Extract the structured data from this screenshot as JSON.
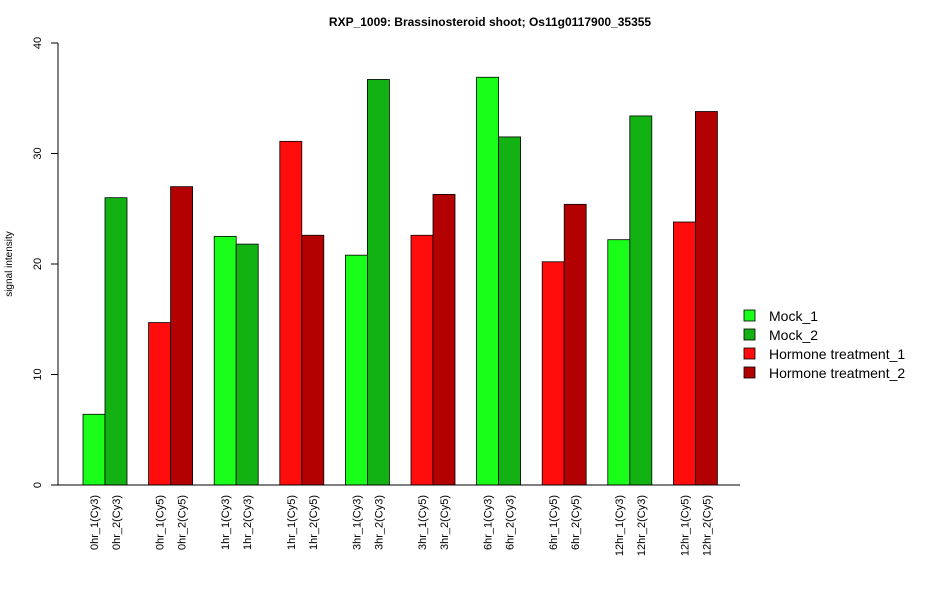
{
  "chart_data": {
    "type": "bar",
    "title": "RXP_1009: Brassinosteroid shoot; Os11g0117900_35355",
    "xlabel": "",
    "ylabel": "signal intensity",
    "ylim": [
      0,
      40
    ],
    "yticks": [
      0,
      10,
      20,
      30,
      40
    ],
    "grid": false,
    "legend_position": "right",
    "legend": [
      {
        "name": "Mock_1",
        "color": "#1aff1a"
      },
      {
        "name": "Mock_2",
        "color": "#12b212"
      },
      {
        "name": "Hormone treatment_1",
        "color": "#ff0d0d"
      },
      {
        "name": "Hormone treatment_2",
        "color": "#b30000"
      }
    ],
    "groups": [
      {
        "bars": [
          {
            "label": "0hr_1(Cy3)",
            "value": 6.4,
            "series": "Mock_1"
          },
          {
            "label": "0hr_2(Cy3)",
            "value": 26.0,
            "series": "Mock_2"
          }
        ]
      },
      {
        "bars": [
          {
            "label": "0hr_1(Cy5)",
            "value": 14.7,
            "series": "Hormone treatment_1"
          },
          {
            "label": "0hr_2(Cy5)",
            "value": 27.0,
            "series": "Hormone treatment_2"
          }
        ]
      },
      {
        "bars": [
          {
            "label": "1hr_1(Cy3)",
            "value": 22.5,
            "series": "Mock_1"
          },
          {
            "label": "1hr_2(Cy3)",
            "value": 21.8,
            "series": "Mock_2"
          }
        ]
      },
      {
        "bars": [
          {
            "label": "1hr_1(Cy5)",
            "value": 31.1,
            "series": "Hormone treatment_1"
          },
          {
            "label": "1hr_2(Cy5)",
            "value": 22.6,
            "series": "Hormone treatment_2"
          }
        ]
      },
      {
        "bars": [
          {
            "label": "3hr_1(Cy3)",
            "value": 20.8,
            "series": "Mock_1"
          },
          {
            "label": "3hr_2(Cy3)",
            "value": 36.7,
            "series": "Mock_2"
          }
        ]
      },
      {
        "bars": [
          {
            "label": "3hr_1(Cy5)",
            "value": 22.6,
            "series": "Hormone treatment_1"
          },
          {
            "label": "3hr_2(Cy5)",
            "value": 26.3,
            "series": "Hormone treatment_2"
          }
        ]
      },
      {
        "bars": [
          {
            "label": "6hr_1(Cy3)",
            "value": 36.9,
            "series": "Mock_1"
          },
          {
            "label": "6hr_2(Cy3)",
            "value": 31.5,
            "series": "Mock_2"
          }
        ]
      },
      {
        "bars": [
          {
            "label": "6hr_1(Cy5)",
            "value": 20.2,
            "series": "Hormone treatment_1"
          },
          {
            "label": "6hr_2(Cy5)",
            "value": 25.4,
            "series": "Hormone treatment_2"
          }
        ]
      },
      {
        "bars": [
          {
            "label": "12hr_1(Cy3)",
            "value": 22.2,
            "series": "Mock_1"
          },
          {
            "label": "12hr_2(Cy3)",
            "value": 33.4,
            "series": "Mock_2"
          }
        ]
      },
      {
        "bars": [
          {
            "label": "12hr_1(Cy5)",
            "value": 23.8,
            "series": "Hormone treatment_1"
          },
          {
            "label": "12hr_2(Cy5)",
            "value": 33.8,
            "series": "Hormone treatment_2"
          }
        ]
      }
    ]
  }
}
